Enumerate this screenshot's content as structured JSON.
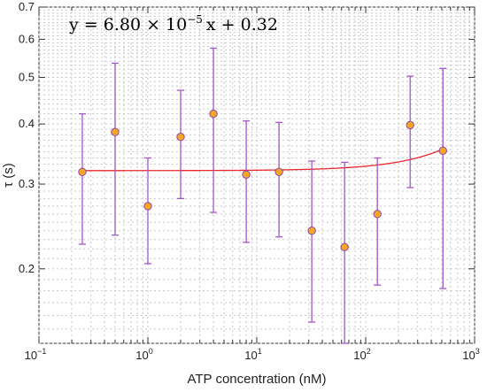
{
  "chart_data": {
    "type": "scatter",
    "title": "",
    "xlabel": "ATP concentration (nM)",
    "ylabel": "τ (s)",
    "xscale": "log",
    "yscale": "log",
    "xlim": [
      0.1,
      1000
    ],
    "ylim": [
      0.14,
      0.7
    ],
    "grid": true,
    "x_tick_labels": [
      {
        "base": "10",
        "exp": "−1"
      },
      {
        "base": "10",
        "exp": "0"
      },
      {
        "base": "10",
        "exp": "1"
      },
      {
        "base": "10",
        "exp": "2"
      },
      {
        "base": "10",
        "exp": "3"
      }
    ],
    "y_ticks": [
      0.2,
      0.3,
      0.4,
      0.5,
      0.6,
      0.7
    ],
    "y_tick_labels": [
      "0.2",
      "0.3",
      "0.4",
      "0.5",
      "0.6",
      "0.7"
    ],
    "points": [
      {
        "x": 0.25,
        "y": 0.318,
        "err_low": 0.225,
        "err_high": 0.42
      },
      {
        "x": 0.5,
        "y": 0.385,
        "err_low": 0.235,
        "err_high": 0.535
      },
      {
        "x": 1,
        "y": 0.27,
        "err_low": 0.205,
        "err_high": 0.34
      },
      {
        "x": 2,
        "y": 0.376,
        "err_low": 0.28,
        "err_high": 0.47
      },
      {
        "x": 4,
        "y": 0.42,
        "err_low": 0.262,
        "err_high": 0.575
      },
      {
        "x": 8,
        "y": 0.314,
        "err_low": 0.227,
        "err_high": 0.406
      },
      {
        "x": 16,
        "y": 0.318,
        "err_low": 0.233,
        "err_high": 0.403
      },
      {
        "x": 32,
        "y": 0.24,
        "err_low": 0.155,
        "err_high": 0.335
      },
      {
        "x": 64,
        "y": 0.222,
        "err_low": 0.14,
        "err_high": 0.333
      },
      {
        "x": 128,
        "y": 0.26,
        "err_low": 0.185,
        "err_high": 0.34
      },
      {
        "x": 256,
        "y": 0.398,
        "err_low": 0.295,
        "err_high": 0.503
      },
      {
        "x": 512,
        "y": 0.352,
        "err_low": 0.182,
        "err_high": 0.522
      }
    ],
    "fit": {
      "slope": 6.8e-05,
      "intercept": 0.32,
      "x_from": 0.25,
      "x_to": 512
    },
    "equation": {
      "prefix": "y = 6.80 × 10",
      "exponent": "−5",
      "suffix": "x + 0.32"
    },
    "colors": {
      "marker_fill": "#f5a623",
      "marker_edge": "#8e44ad",
      "errorbar": "#a456c8",
      "fit_line": "#e8282d",
      "grid": "#c8c8c8",
      "axis": "#333333"
    }
  }
}
